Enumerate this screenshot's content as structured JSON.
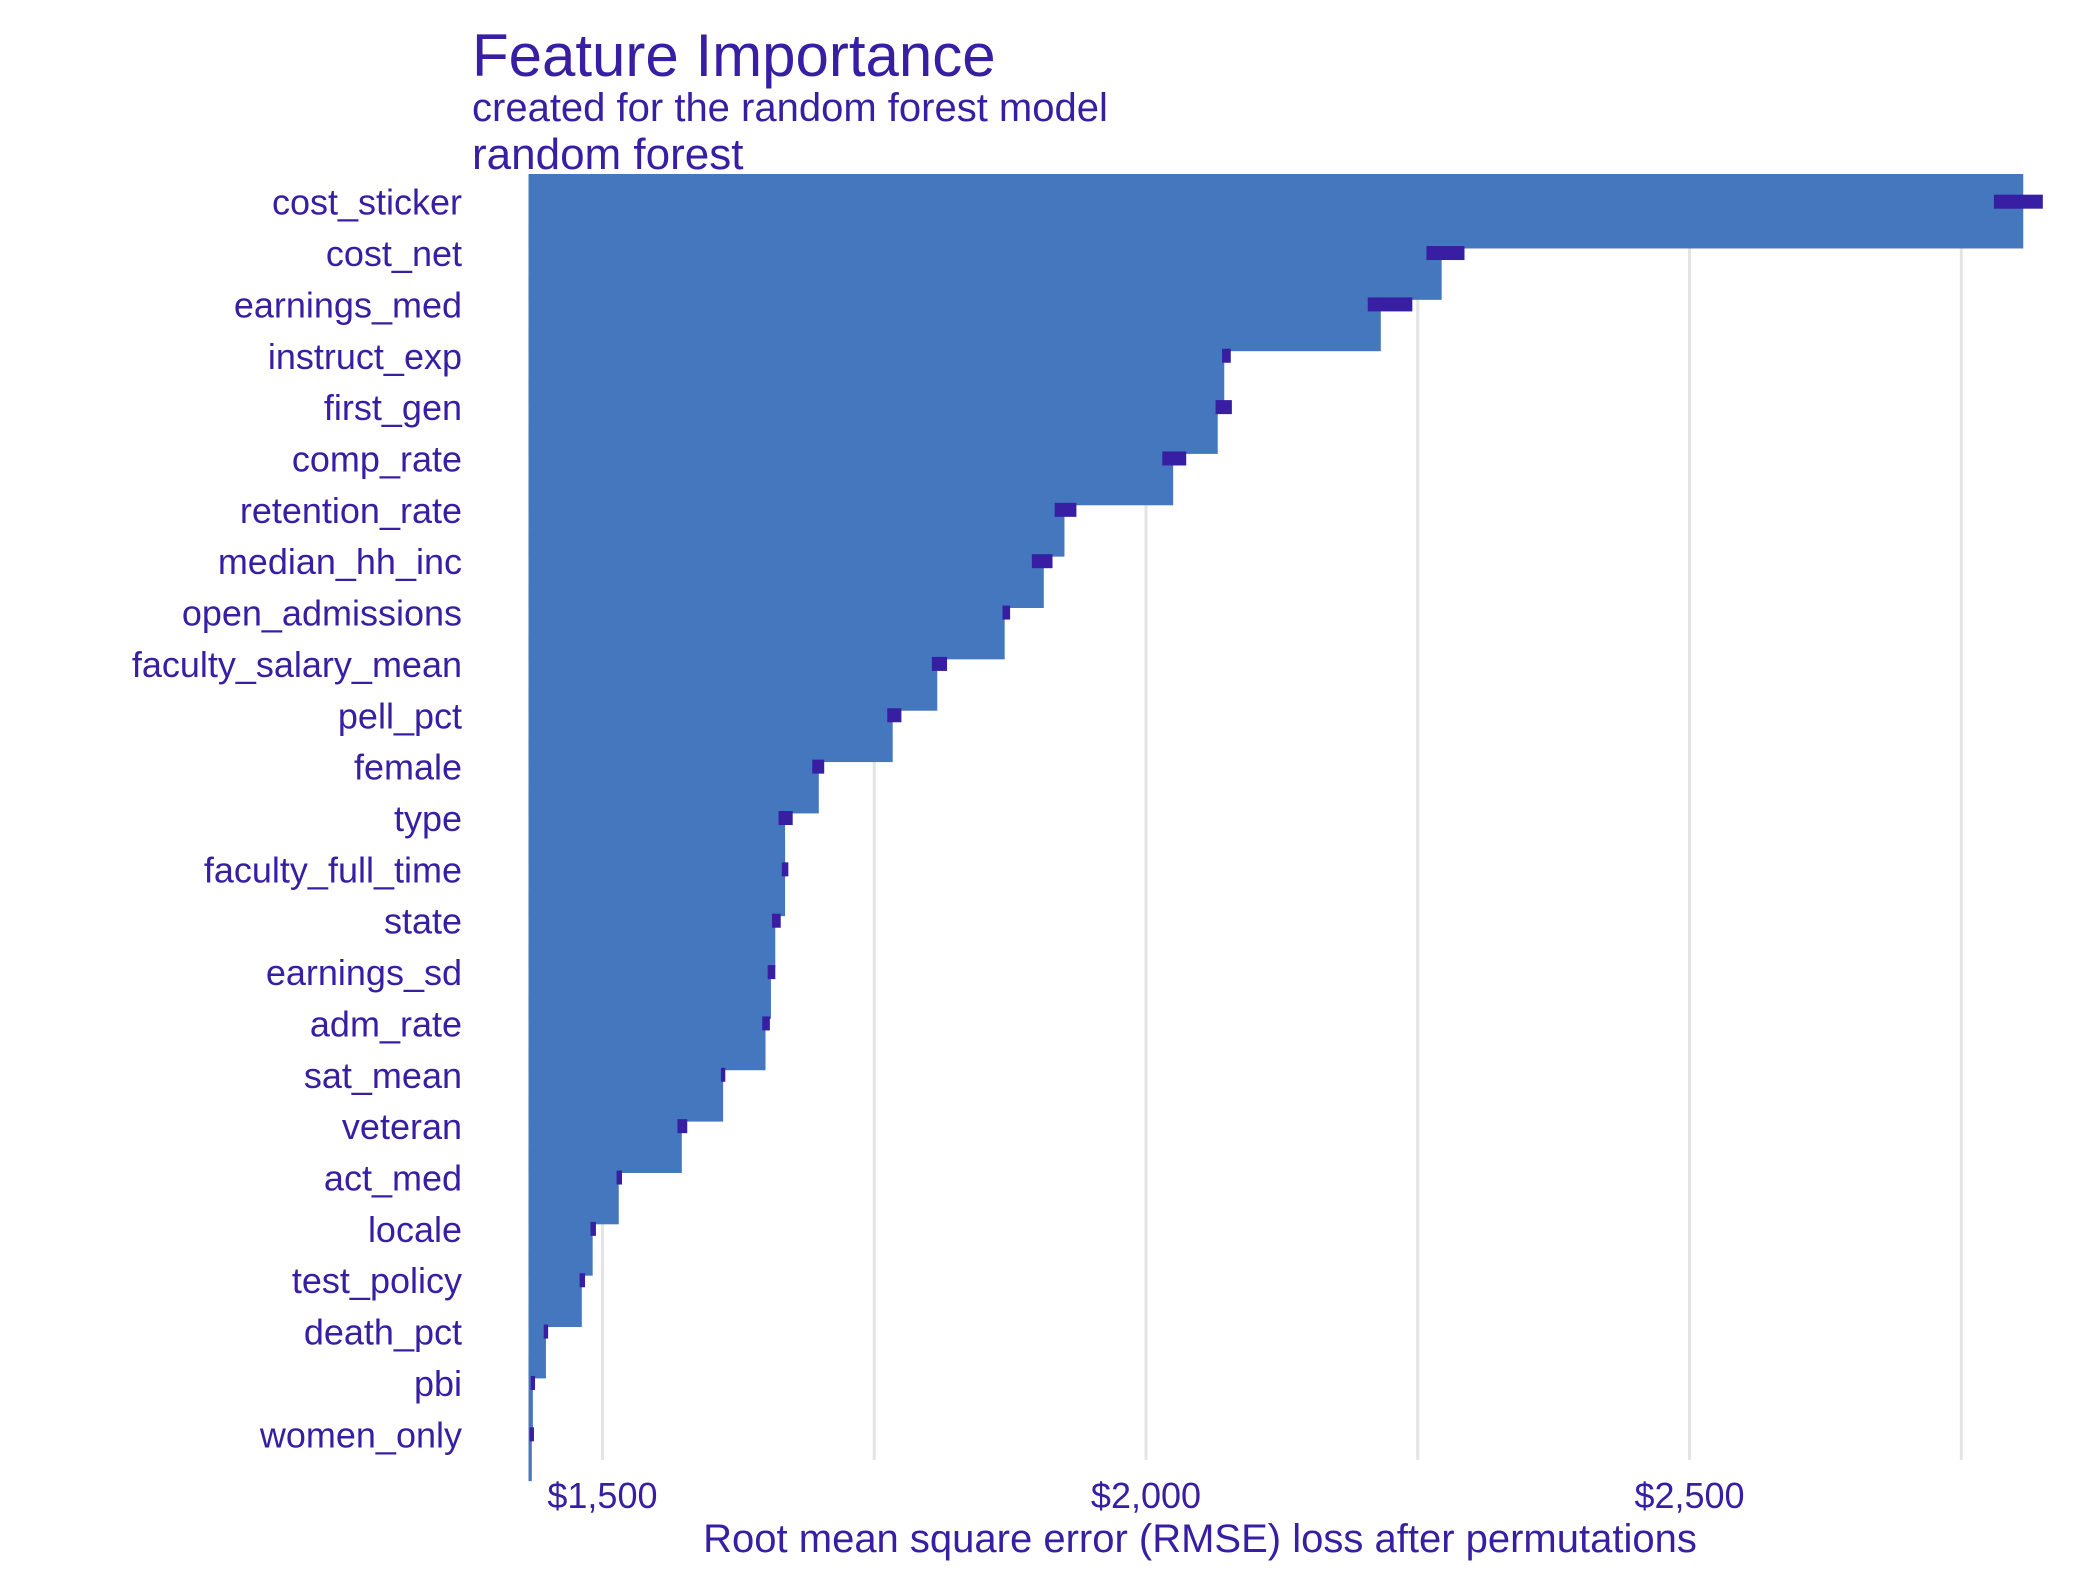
{
  "chart_data": {
    "type": "bar",
    "orientation": "horizontal",
    "title": "Feature Importance",
    "subtitle": "created for the random forest model",
    "model_label": "random forest",
    "xlabel": "Root mean square error (RMSE) loss after permutations",
    "ylabel": "",
    "baseline": 1432,
    "xlim": [
      1380,
      2850
    ],
    "xticks": [
      {
        "value": 1500,
        "label": "$1,500"
      },
      {
        "value": 2000,
        "label": "$2,000"
      },
      {
        "value": 2500,
        "label": "$2,500"
      }
    ],
    "grid": true,
    "legend": "none",
    "colors": {
      "bar": "#4477BD",
      "whisker": "#371EA3",
      "text": "#371EA3",
      "grid": "#E4E4E4"
    },
    "categories": [
      "cost_sticker",
      "cost_net",
      "earnings_med",
      "instruct_exp",
      "first_gen",
      "comp_rate",
      "retention_rate",
      "median_hh_inc",
      "open_admissions",
      "faculty_salary_mean",
      "pell_pct",
      "female",
      "type",
      "faculty_full_time",
      "state",
      "earnings_sd",
      "adm_rate",
      "sat_mean",
      "veteran",
      "act_med",
      "locale",
      "test_policy",
      "death_pct",
      "pbi",
      "women_only"
    ],
    "values": [
      2807,
      2272,
      2216,
      2072,
      2066,
      2025,
      1925,
      1906,
      1870,
      1808,
      1767,
      1699,
      1668,
      1668,
      1659,
      1655,
      1650,
      1611,
      1573,
      1515,
      1491,
      1481,
      1448,
      1436,
      1435
    ],
    "whiskers": [
      [
        2780,
        2825
      ],
      [
        2258,
        2293
      ],
      [
        2204,
        2245
      ],
      [
        2070,
        2078
      ],
      [
        2064,
        2079
      ],
      [
        2015,
        2037
      ],
      [
        1916,
        1936
      ],
      [
        1895,
        1914
      ],
      [
        1868,
        1875
      ],
      [
        1803,
        1817
      ],
      [
        1762,
        1775
      ],
      [
        1693,
        1704
      ],
      [
        1662,
        1675
      ],
      [
        1665,
        1671
      ],
      [
        1656,
        1664
      ],
      [
        1652,
        1659
      ],
      [
        1647,
        1654
      ],
      [
        1609,
        1613
      ],
      [
        1569,
        1578
      ],
      [
        1513,
        1518
      ],
      [
        1489,
        1494
      ],
      [
        1479,
        1484
      ],
      [
        1446,
        1450
      ],
      [
        1434,
        1438
      ],
      [
        1433,
        1437
      ]
    ]
  }
}
